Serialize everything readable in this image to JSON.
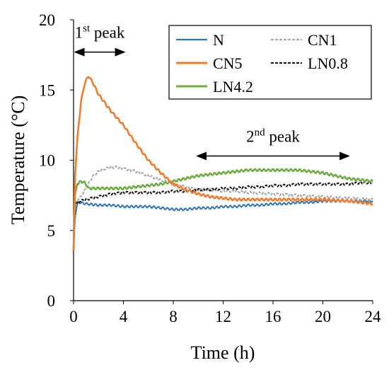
{
  "chart_data": {
    "type": "line",
    "xlabel": "Time (h)",
    "ylabel": "Temperature (°C)",
    "xlim": [
      0,
      24
    ],
    "ylim": [
      0,
      20
    ],
    "xticks": [
      "0",
      "4",
      "8",
      "12",
      "16",
      "20",
      "24"
    ],
    "yticks": [
      "0",
      "5",
      "10",
      "15",
      "20"
    ],
    "grid": false,
    "legend_position": "top-right",
    "series": [
      {
        "name": "N",
        "color": "#2E75B6",
        "style": "solid",
        "x": [
          0,
          0.1,
          0.3,
          0.5,
          1,
          2,
          3,
          4,
          5,
          6,
          7,
          8,
          9,
          10,
          11,
          12,
          13,
          14,
          15,
          16,
          17,
          18,
          19,
          20,
          21,
          22,
          23,
          24
        ],
        "y": [
          3.6,
          5.8,
          6.9,
          7.0,
          6.9,
          6.8,
          6.8,
          6.7,
          6.7,
          6.7,
          6.6,
          6.5,
          6.5,
          6.6,
          6.6,
          6.7,
          6.7,
          6.8,
          6.8,
          6.9,
          6.9,
          7.0,
          7.0,
          7.1,
          7.1,
          7.1,
          7.1,
          7.1
        ]
      },
      {
        "name": "CN1",
        "color": "#A5A5A5",
        "style": "dashed",
        "x": [
          0,
          0.1,
          0.3,
          0.5,
          1,
          1.5,
          2,
          2.5,
          3,
          3.5,
          4,
          5,
          6,
          7,
          8,
          9,
          10,
          11,
          12,
          13,
          14,
          16,
          18,
          20,
          22,
          24
        ],
        "y": [
          3.6,
          6.5,
          7.2,
          7.3,
          8.0,
          8.8,
          9.2,
          9.4,
          9.5,
          9.5,
          9.4,
          9.2,
          8.9,
          8.6,
          8.3,
          8.1,
          7.9,
          7.9,
          7.8,
          7.8,
          7.7,
          7.6,
          7.5,
          7.4,
          7.3,
          7.2
        ]
      },
      {
        "name": "CN5",
        "color": "#ED7D31",
        "style": "solid",
        "x": [
          0,
          0.1,
          0.3,
          0.6,
          0.9,
          1.2,
          1.5,
          2,
          3,
          4,
          5,
          6,
          7,
          8,
          9,
          10,
          11,
          12,
          13,
          14,
          16,
          18,
          20,
          22,
          24
        ],
        "y": [
          3.6,
          8.5,
          11.5,
          14.2,
          15.5,
          16.0,
          15.6,
          14.7,
          13.5,
          12.5,
          11.2,
          10.0,
          9.1,
          8.3,
          7.9,
          7.6,
          7.4,
          7.3,
          7.2,
          7.2,
          7.2,
          7.2,
          7.2,
          7.1,
          6.9
        ]
      },
      {
        "name": "LN0.8",
        "color": "#1a1a1a",
        "style": "dashed",
        "x": [
          0,
          0.1,
          0.3,
          0.5,
          1,
          2,
          3,
          4,
          5,
          6,
          7,
          8,
          9,
          10,
          11,
          12,
          13,
          14,
          15,
          16,
          17,
          18,
          19,
          20,
          21,
          22,
          23,
          24
        ],
        "y": [
          3.6,
          6.8,
          7.0,
          7.1,
          7.2,
          7.4,
          7.6,
          7.7,
          7.7,
          7.7,
          7.7,
          7.8,
          7.8,
          7.9,
          7.9,
          8.0,
          8.0,
          8.1,
          8.1,
          8.2,
          8.2,
          8.3,
          8.3,
          8.3,
          8.3,
          8.3,
          8.4,
          8.4
        ]
      },
      {
        "name": "LN4.2",
        "color": "#70AD47",
        "style": "solid",
        "x": [
          0,
          0.1,
          0.3,
          0.6,
          0.9,
          1.2,
          2,
          3,
          4,
          5,
          6,
          7,
          8,
          9,
          10,
          11,
          12,
          13,
          14,
          15,
          16,
          17,
          18,
          19,
          20,
          21,
          22,
          23,
          24
        ],
        "y": [
          3.6,
          7.5,
          8.3,
          8.5,
          8.4,
          8.0,
          8.0,
          8.0,
          8.0,
          8.1,
          8.2,
          8.3,
          8.5,
          8.7,
          8.9,
          9.0,
          9.1,
          9.2,
          9.3,
          9.3,
          9.3,
          9.3,
          9.3,
          9.2,
          9.1,
          8.9,
          8.7,
          8.6,
          8.5
        ]
      }
    ],
    "annotations": [
      {
        "prefix": "1",
        "sup": "st",
        "suffix": " peak",
        "x_start": 0,
        "x_end": 4.2,
        "y": 17.7
      },
      {
        "prefix": "2",
        "sup": "nd",
        "suffix": " peak",
        "x_start": 9.8,
        "x_end": 22.2,
        "y": 10.3
      }
    ]
  }
}
